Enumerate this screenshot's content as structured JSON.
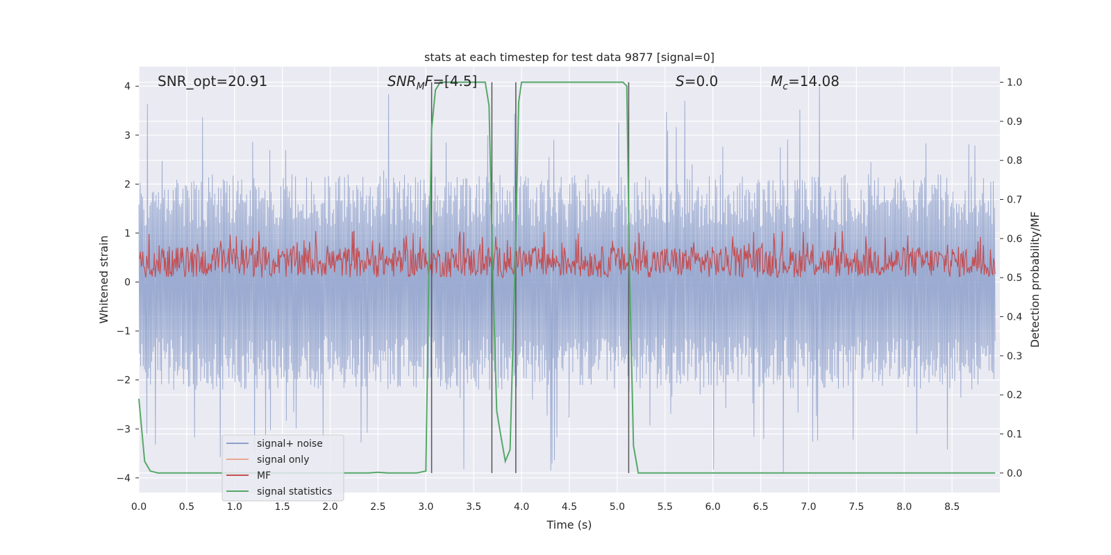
{
  "chart_data": {
    "type": "line",
    "title": "stats at each timestep for test data 9877 [signal=0]",
    "xlabel": "Time (s)",
    "ylabel_left": "Whitened strain",
    "ylabel_right": "Detection probability/MF",
    "xlim": [
      0.0,
      9.0
    ],
    "ylim_left": [
      -4.3,
      4.4
    ],
    "ylim_right": [
      -0.05,
      1.04
    ],
    "xticks": [
      0.0,
      0.5,
      1.0,
      1.5,
      2.0,
      2.5,
      3.0,
      3.5,
      4.0,
      4.5,
      5.0,
      5.5,
      6.0,
      6.5,
      7.0,
      7.5,
      8.0,
      8.5
    ],
    "xtick_labels": [
      "0.0",
      "0.5",
      "1.0",
      "1.5",
      "2.0",
      "2.5",
      "3.0",
      "3.5",
      "4.0",
      "4.5",
      "5.0",
      "5.5",
      "6.0",
      "6.5",
      "7.0",
      "7.5",
      "8.0",
      "8.5"
    ],
    "yticks_left": [
      -4,
      -3,
      -2,
      -1,
      0,
      1,
      2,
      3,
      4
    ],
    "ytick_labels_left": [
      "−4",
      "−3",
      "−2",
      "−1",
      "0",
      "1",
      "2",
      "3",
      "4"
    ],
    "yticks_right": [
      0.0,
      0.1,
      0.2,
      0.3,
      0.4,
      0.5,
      0.6,
      0.7,
      0.8,
      0.9,
      1.0
    ],
    "ytick_labels_right": [
      "0.0",
      "0.1",
      "0.2",
      "0.3",
      "0.4",
      "0.5",
      "0.6",
      "0.7",
      "0.8",
      "0.9",
      "1.0"
    ],
    "grid": true,
    "legend_position": "lower-left",
    "annotations": {
      "snr_opt": "SNR_opt=20.91",
      "snr_mf_symbol": "SNR",
      "snr_mf_sub": "M",
      "snr_mf_symbol2": "F",
      "snr_mf_value": "=[4.5]",
      "s_symbol": "S",
      "s_value": "=0.0",
      "mc_symbol": "M",
      "mc_sub": "c",
      "mc_value": "=14.08"
    },
    "detection_markers_x": [
      3.06,
      3.69,
      3.94,
      5.12
    ],
    "series": [
      {
        "name": "signal+ noise",
        "axis": "left",
        "color": "#8da0cb",
        "kind": "noise",
        "description_stats": {
          "mean": 0.0,
          "envelope_upper": 2.2,
          "envelope_lower": -2.2,
          "peak_max": 4.0,
          "peak_min": -3.9
        }
      },
      {
        "name": "signal only",
        "axis": "left",
        "color": "#e8a98e",
        "kind": "flat",
        "values": []
      },
      {
        "name": "MF",
        "axis": "right",
        "color": "#c44e52",
        "kind": "noise",
        "description_stats": {
          "baseline": 0.5,
          "upper": 0.58,
          "lower": 0.5,
          "peak_max": 0.62
        }
      },
      {
        "name": "signal statistics",
        "axis": "right",
        "color": "#55a868",
        "kind": "line",
        "x": [
          0.0,
          0.06,
          0.12,
          0.2,
          0.5,
          1.0,
          1.5,
          2.0,
          2.4,
          2.5,
          2.6,
          2.9,
          3.0,
          3.03,
          3.06,
          3.1,
          3.15,
          3.5,
          3.62,
          3.66,
          3.7,
          3.74,
          3.78,
          3.83,
          3.88,
          3.94,
          3.97,
          4.0,
          4.5,
          5.0,
          5.06,
          5.1,
          5.13,
          5.17,
          5.22,
          5.3,
          6.0,
          7.0,
          8.0,
          8.95
        ],
        "y": [
          0.19,
          0.03,
          0.005,
          0.0,
          0.0,
          0.0,
          0.0,
          0.0,
          0.0,
          0.002,
          0.0,
          0.0,
          0.005,
          0.5,
          0.88,
          0.98,
          1.0,
          1.0,
          1.0,
          0.94,
          0.5,
          0.16,
          0.1,
          0.03,
          0.06,
          0.6,
          0.95,
          1.0,
          1.0,
          1.0,
          1.0,
          0.99,
          0.5,
          0.07,
          0.0,
          0.0,
          0.0,
          0.0,
          0.0,
          0.0
        ]
      }
    ]
  }
}
